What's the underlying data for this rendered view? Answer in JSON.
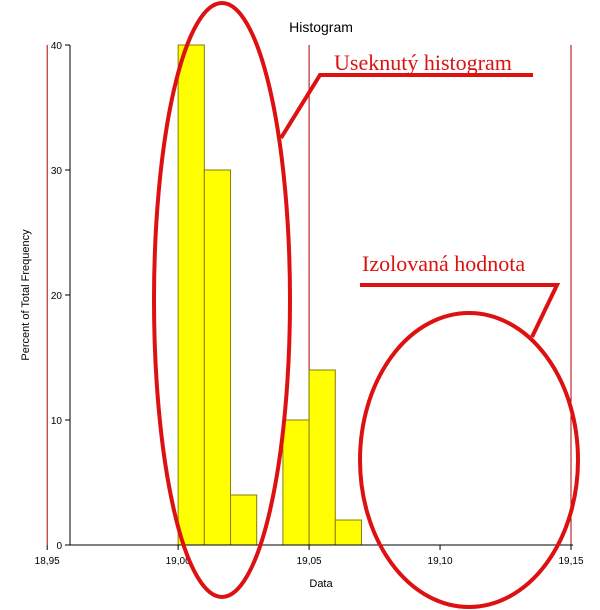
{
  "chart_data": {
    "type": "bar",
    "title": "Histogram",
    "xlabel": "Data",
    "ylabel": "Percent of Total Frequency",
    "xlim": [
      18.94,
      19.15
    ],
    "ylim": [
      0,
      40
    ],
    "x_ticks": [
      18.95,
      19.0,
      19.05,
      19.1,
      19.15
    ],
    "x_tick_labels": [
      "18,95",
      "19,00",
      "19,05",
      "19,10",
      "19,15"
    ],
    "y_ticks": [
      0,
      10,
      20,
      30,
      40
    ],
    "y_tick_labels": [
      "0",
      "10",
      "20",
      "30",
      "40"
    ],
    "bin_width": 0.01,
    "bins": [
      {
        "start": 19.0,
        "end": 19.01,
        "value": 40
      },
      {
        "start": 19.01,
        "end": 19.02,
        "value": 30
      },
      {
        "start": 19.02,
        "end": 19.03,
        "value": 4
      },
      {
        "start": 19.04,
        "end": 19.05,
        "value": 10
      },
      {
        "start": 19.05,
        "end": 19.06,
        "value": 14
      },
      {
        "start": 19.06,
        "end": 19.07,
        "value": 2
      }
    ],
    "reference_lines_x": [
      18.95,
      19.05,
      19.15
    ],
    "grid": false,
    "bar_color": "#ffff00",
    "bar_edge_color": "#8b7d00",
    "reference_line_color": "#aa0000"
  },
  "annotations": {
    "color": "#dd1111",
    "truncated_label": "Useknutý histogram",
    "isolated_label": "Izolovaná hodnota"
  }
}
